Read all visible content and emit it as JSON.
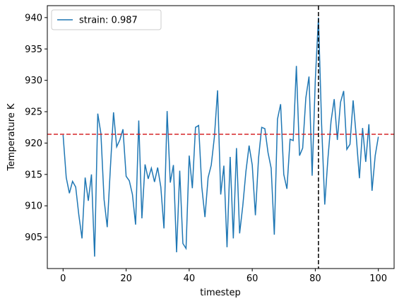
{
  "chart_data": {
    "type": "line",
    "xlabel": "timestep",
    "ylabel": "Temperature K",
    "x": [
      0,
      1,
      2,
      3,
      4,
      5,
      6,
      7,
      8,
      9,
      10,
      11,
      12,
      13,
      14,
      15,
      16,
      17,
      18,
      19,
      20,
      21,
      22,
      23,
      24,
      25,
      26,
      27,
      28,
      29,
      30,
      31,
      32,
      33,
      34,
      35,
      36,
      37,
      38,
      39,
      40,
      41,
      42,
      43,
      44,
      45,
      46,
      47,
      48,
      49,
      50,
      51,
      52,
      53,
      54,
      55,
      56,
      57,
      58,
      59,
      60,
      61,
      62,
      63,
      64,
      65,
      66,
      67,
      68,
      69,
      70,
      71,
      72,
      73,
      74,
      75,
      76,
      77,
      78,
      79,
      80,
      81,
      82,
      83,
      84,
      85,
      86,
      87,
      88,
      89,
      90,
      91,
      92,
      93,
      94,
      95,
      96,
      97,
      98,
      99,
      100
    ],
    "series": [
      {
        "name": "strain: 0.987",
        "color": "#1f77b4",
        "values": [
          921.3,
          914.5,
          912,
          913.9,
          913,
          908.5,
          904.8,
          914.5,
          910.8,
          915,
          901.9,
          924.7,
          921.5,
          911,
          906.6,
          916,
          924.9,
          919.4,
          920.5,
          922.2,
          914.7,
          914,
          911.8,
          907,
          923.6,
          908,
          916.6,
          914.3,
          916,
          913.8,
          916.1,
          913,
          906.4,
          925.1,
          913.7,
          916.5,
          902.6,
          915.6,
          904,
          903.2,
          918,
          912.8,
          922.5,
          922.8,
          913,
          908.2,
          914.5,
          916.5,
          921,
          928.4,
          911.8,
          916.4,
          903.4,
          917.8,
          904.8,
          919.2,
          905.6,
          910,
          915.5,
          919.6,
          916.5,
          908.5,
          917.6,
          922.5,
          922.3,
          918.5,
          916,
          905.4,
          923.8,
          926.2,
          915,
          912.7,
          920.6,
          920.4,
          932.3,
          918,
          919.2,
          927.2,
          930.6,
          914.8,
          930,
          940,
          923,
          910.2,
          917.5,
          923.5,
          927,
          920.5,
          926.5,
          928.3,
          919,
          919.8,
          926.8,
          921,
          914.4,
          922.4,
          917,
          923,
          912.4,
          918,
          921
        ]
      }
    ],
    "hline": {
      "value": 921.4,
      "color": "#d62728"
    },
    "vline": {
      "value": 81,
      "color": "#000000"
    },
    "xlim": [
      -5,
      105
    ],
    "xticks": [
      0,
      20,
      40,
      60,
      80,
      100
    ],
    "ylim": [
      900,
      941.9
    ],
    "yticks": [
      905,
      910,
      915,
      920,
      925,
      930,
      935,
      940
    ],
    "grid": false,
    "legend": "upper left"
  }
}
